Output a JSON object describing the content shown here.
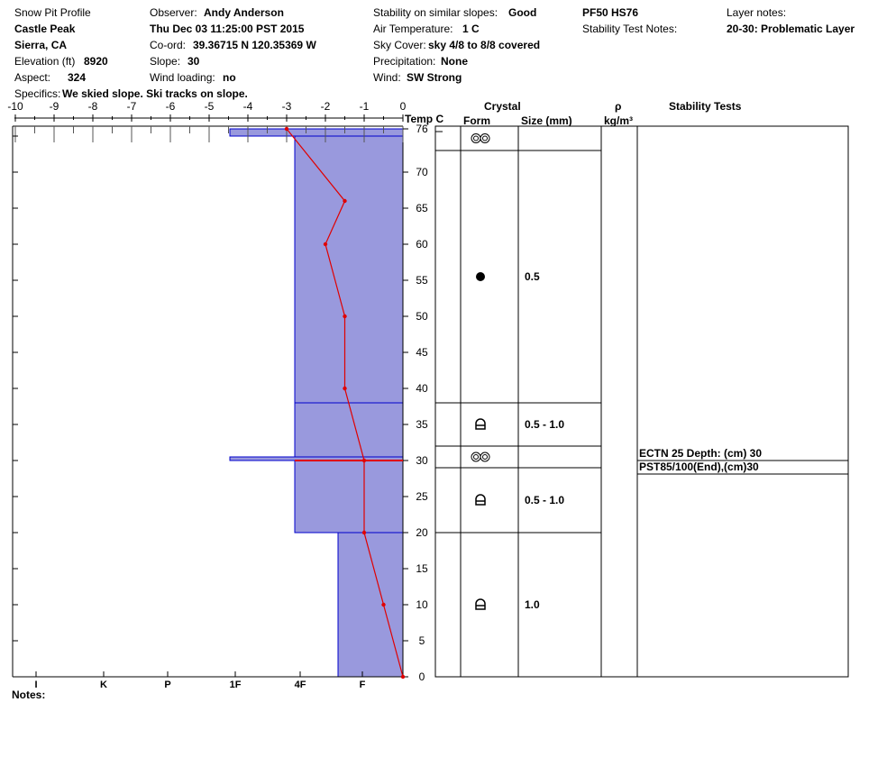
{
  "header": {
    "title": "Snow Pit Profile",
    "location": "Castle Peak",
    "region": "Sierra, CA",
    "elevation_label": "Elevation (ft)",
    "elevation": "8920",
    "aspect_label": "Aspect:",
    "aspect": "324",
    "specifics_label": "Specifics:",
    "specifics": "We skied slope. Ski tracks on slope.",
    "observer_label": "Observer:",
    "observer": "Andy Anderson",
    "datetime": "Thu Dec 03 11:25:00 PST 2015",
    "coord_label": "Co-ord:",
    "coord": "39.36715 N 120.35369 W",
    "slope_label": "Slope:",
    "slope": "30",
    "wind_loading_label": "Wind loading:",
    "wind_loading": "no",
    "stability_label": "Stability on similar slopes:",
    "stability": "Good",
    "air_temp_label": "Air Temperature:",
    "air_temp": "1 C",
    "sky_label": "Sky Cover:",
    "sky": "sky 4/8 to 8/8 covered",
    "precip_label": "Precipitation:",
    "precip": "None",
    "wind_label": "Wind:",
    "wind": "SW Strong",
    "pf_hs": "PF50 HS76",
    "stab_notes_label": "Stability Test Notes:",
    "layer_notes_label": "Layer notes:",
    "layer_notes": "20-30: Problematic Layer"
  },
  "columns": {
    "temp_label": "Temp C",
    "crystal": "Crystal",
    "form": "Form",
    "size": "Size (mm)",
    "rho": "ρ",
    "density_unit": "kg/m³",
    "stability_tests": "Stability Tests"
  },
  "notes_label": "Notes:",
  "chart_data": {
    "type": "snow-profile",
    "temp_axis": {
      "min": -10,
      "max": 0,
      "ticks": [
        -10,
        -9,
        -8,
        -7,
        -6,
        -5,
        -4,
        -3,
        -2,
        -1,
        0
      ]
    },
    "depth_axis": {
      "min": 0,
      "max": 76,
      "ticks": [
        0,
        5,
        10,
        15,
        20,
        25,
        30,
        35,
        40,
        45,
        50,
        55,
        60,
        65,
        70,
        76
      ]
    },
    "hardness_axis": {
      "labels": [
        "I",
        "K",
        "P",
        "1F",
        "4F",
        "F"
      ]
    },
    "hardness_layers": [
      {
        "bottom": 0,
        "top": 20,
        "hardness": "F+"
      },
      {
        "bottom": 20,
        "top": 30,
        "hardness": "4F"
      },
      {
        "bottom": 30,
        "top": 30.5,
        "hardness": "1F-"
      },
      {
        "bottom": 30.5,
        "top": 38,
        "hardness": "4F"
      },
      {
        "bottom": 38,
        "top": 75,
        "hardness": "4F"
      },
      {
        "bottom": 75,
        "top": 76,
        "hardness": "1F-"
      }
    ],
    "temperature_profile": [
      {
        "depth": 0,
        "temp": 0
      },
      {
        "depth": 10,
        "temp": -0.5
      },
      {
        "depth": 20,
        "temp": -1
      },
      {
        "depth": 30,
        "temp": -1
      },
      {
        "depth": 40,
        "temp": -1.5
      },
      {
        "depth": 50,
        "temp": -1.5
      },
      {
        "depth": 60,
        "temp": -2
      },
      {
        "depth": 66,
        "temp": -1.5
      },
      {
        "depth": 76,
        "temp": -3
      }
    ],
    "crystal_layers": [
      {
        "bottom": 73,
        "top": 76,
        "form": "surface-hoar",
        "size": ""
      },
      {
        "bottom": 38,
        "top": 73,
        "form": "rounded",
        "size": "0.5"
      },
      {
        "bottom": 32,
        "top": 38,
        "form": "depth-hoar",
        "size": "0.5 - 1.0"
      },
      {
        "bottom": 29,
        "top": 32,
        "form": "surface-hoar",
        "size": ""
      },
      {
        "bottom": 20,
        "top": 29,
        "form": "depth-hoar",
        "size": "0.5 - 1.0"
      },
      {
        "bottom": 0,
        "top": 20,
        "form": "depth-hoar",
        "size": "1.0"
      }
    ],
    "stability_tests": [
      {
        "depth": 30,
        "label": "ECTN 25  Depth: (cm) 30"
      },
      {
        "depth": 30,
        "label": "PST85/100(End),(cm)30"
      }
    ]
  }
}
